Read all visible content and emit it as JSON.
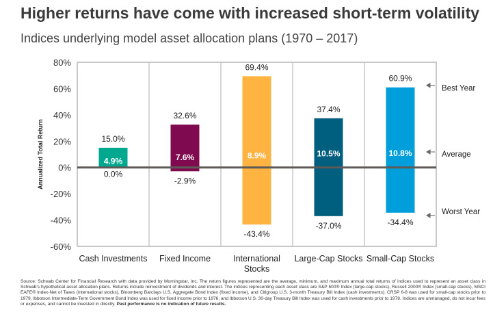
{
  "title": "Higher returns have come with increased short-term volatility",
  "subtitle": "Indices underlying model asset allocation plans (1970 – 2017)",
  "chart_data": {
    "type": "bar",
    "ylabel": "Annualized Total Return",
    "ylim": [
      -60,
      80
    ],
    "yticks": [
      80,
      60,
      40,
      20,
      0,
      -20,
      -40,
      -60
    ],
    "ytick_labels": [
      "80%",
      "60%",
      "40%",
      "20%",
      "0%",
      "-20%",
      "-40%",
      "-60%"
    ],
    "categories": [
      "Cash Investments",
      "Fixed Income",
      "International Stocks",
      "Large-Cap Stocks",
      "Small-Cap Stocks"
    ],
    "best": [
      15.0,
      32.6,
      69.4,
      37.4,
      60.9
    ],
    "average": [
      4.9,
      7.6,
      8.9,
      10.5,
      10.8
    ],
    "worst": [
      0.0,
      -2.9,
      -43.4,
      -37.0,
      -34.4
    ],
    "best_labels": [
      "15.0%",
      "32.6%",
      "69.4%",
      "37.4%",
      "60.9%"
    ],
    "average_labels": [
      "4.9%",
      "7.6%",
      "8.9%",
      "10.5%",
      "10.8%"
    ],
    "worst_labels": [
      "0.0%",
      "-2.9%",
      "-43.4%",
      "-37.0%",
      "-34.4%"
    ],
    "colors": [
      "#00a88f",
      "#7f0a4f",
      "#ffb340",
      "#005e7e",
      "#009fdb"
    ],
    "annotations": [
      "Best Year",
      "Average",
      "Worst Year"
    ],
    "grid": false
  },
  "source": {
    "text": "Source: Schwab Center for Financial Research with data provided by Morningstar, Inc. The return figures represented are the average, minimum, and maximum annual total returns of indices used to represent an asset class in Schwab's hypothetical asset allocation plans. Returns include reinvestment of dividends and interest. The indices representing each asset class are S&P 500® Index (large-cap stocks), Russell 2000® Index (small-cap stocks), MSCI EAFE® Index-Net of Taxes (international stocks), Bloomberg Barclays U.S. Aggregate Bond Index (fixed income), and Citigroup U.S. 3-month Treasury Bill Index (cash investments). CRSP 6-8 was used for small-cap stocks prior to 1979, Ibbotson Intermediate-Term Government Bond Index was used for fixed income prior to 1976, and Ibbotson U.S. 30-day Treasury Bill Index was used for cash investments prior to 1978. Indices are unmanaged, do not incur fees or expenses, and cannot be invested in directly.",
    "bold": "Past performance is no indication of future results."
  }
}
